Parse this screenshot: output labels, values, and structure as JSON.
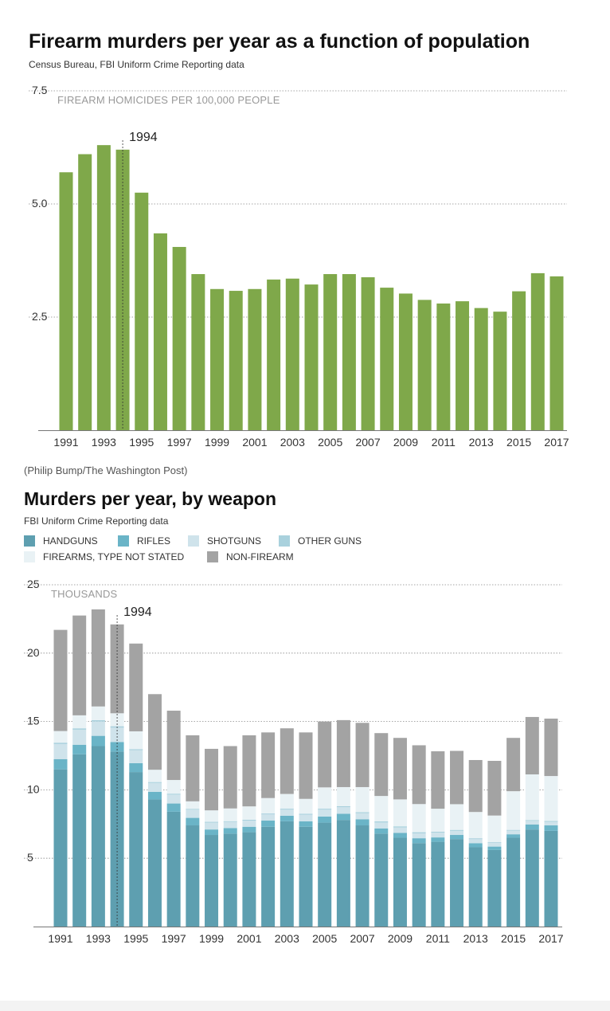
{
  "chart1": {
    "title": "Firearm murders per year as a function of population",
    "subtitle": "Census Bureau, FBI Uniform Crime Reporting data",
    "credit": "(Philip Bump/The Washington Post)"
  },
  "chart2": {
    "title": "Murders per year, by weapon",
    "subtitle": "FBI Uniform Crime Reporting data",
    "legend": [
      {
        "label": "HANDGUNS",
        "color": "#5e9fb0"
      },
      {
        "label": "RIFLES",
        "color": "#6ab4c7"
      },
      {
        "label": "SHOTGUNS",
        "color": "#cfe3eb"
      },
      {
        "label": "OTHER GUNS",
        "color": "#a9d1dd"
      },
      {
        "label": "FIREARMS, TYPE NOT STATED",
        "color": "#e9f2f5"
      },
      {
        "label": "NON-FIREARM",
        "color": "#a3a3a3"
      }
    ]
  },
  "chart_data": [
    {
      "type": "bar",
      "title": "Firearm murders per year as a function of population",
      "subtitle": "Census Bureau, FBI Uniform Crime Reporting data",
      "ylabel": "FIREARM HOMICIDES PER 100,000 PEOPLE",
      "ylim": [
        0,
        7.5
      ],
      "yticks": [
        "2.5",
        "5.0",
        "7.5"
      ],
      "ytick_values": [
        2.5,
        5.0,
        7.5
      ],
      "xtick_labels": [
        "1991",
        "1993",
        "1995",
        "1997",
        "1999",
        "2001",
        "2003",
        "2005",
        "2007",
        "2009",
        "2011",
        "2013",
        "2015",
        "2017"
      ],
      "annotation": {
        "label": "1994",
        "x": 1994
      },
      "bar_color": "#7fa84a",
      "grid": true,
      "categories": [
        1991,
        1992,
        1993,
        1994,
        1995,
        1996,
        1997,
        1998,
        1999,
        2000,
        2001,
        2002,
        2003,
        2004,
        2005,
        2006,
        2007,
        2008,
        2009,
        2010,
        2011,
        2012,
        2013,
        2014,
        2015,
        2016,
        2017
      ],
      "values": [
        5.7,
        6.1,
        6.3,
        6.2,
        5.25,
        4.35,
        4.05,
        3.45,
        3.12,
        3.08,
        3.12,
        3.33,
        3.35,
        3.22,
        3.45,
        3.45,
        3.38,
        3.15,
        3.02,
        2.88,
        2.8,
        2.85,
        2.7,
        2.62,
        3.07,
        3.47,
        3.4
      ]
    },
    {
      "type": "bar",
      "stacked": true,
      "title": "Murders per year, by weapon",
      "subtitle": "FBI Uniform Crime Reporting data",
      "ylabel": "THOUSANDS",
      "ylim": [
        0,
        25
      ],
      "yticks": [
        "5",
        "10",
        "15",
        "20",
        "25"
      ],
      "ytick_values": [
        5,
        10,
        15,
        20,
        25
      ],
      "xtick_labels": [
        "1991",
        "1993",
        "1995",
        "1997",
        "1999",
        "2001",
        "2003",
        "2005",
        "2007",
        "2009",
        "2011",
        "2013",
        "2015",
        "2017"
      ],
      "annotation": {
        "label": "1994",
        "x": 1994
      },
      "grid": true,
      "legend_position": "top-left",
      "categories": [
        1991,
        1992,
        1993,
        1994,
        1995,
        1996,
        1997,
        1998,
        1999,
        2000,
        2001,
        2002,
        2003,
        2004,
        2005,
        2006,
        2007,
        2008,
        2009,
        2010,
        2011,
        2012,
        2013,
        2014,
        2015,
        2016,
        2017
      ],
      "series": [
        {
          "name": "HANDGUNS",
          "color": "#5e9fb0",
          "values": [
            11.5,
            12.6,
            13.2,
            12.8,
            11.3,
            9.3,
            8.4,
            7.4,
            6.7,
            6.8,
            6.9,
            7.3,
            7.7,
            7.3,
            7.6,
            7.8,
            7.4,
            6.8,
            6.5,
            6.1,
            6.2,
            6.4,
            5.8,
            5.6,
            6.5,
            7.1,
            7.0
          ]
        },
        {
          "name": "RIFLES",
          "color": "#6ab4c7",
          "values": [
            0.75,
            0.7,
            0.75,
            0.7,
            0.65,
            0.55,
            0.6,
            0.55,
            0.4,
            0.4,
            0.4,
            0.45,
            0.4,
            0.4,
            0.45,
            0.45,
            0.45,
            0.38,
            0.35,
            0.36,
            0.32,
            0.3,
            0.29,
            0.25,
            0.25,
            0.37,
            0.4
          ]
        },
        {
          "name": "SHOTGUNS",
          "color": "#cfe3eb",
          "values": [
            1.1,
            1.1,
            1.05,
            1.05,
            0.95,
            0.65,
            0.65,
            0.6,
            0.5,
            0.45,
            0.45,
            0.45,
            0.45,
            0.48,
            0.5,
            0.48,
            0.44,
            0.43,
            0.4,
            0.36,
            0.35,
            0.3,
            0.3,
            0.26,
            0.26,
            0.26,
            0.26
          ]
        },
        {
          "name": "OTHER GUNS",
          "color": "#a9d1dd",
          "values": [
            0.1,
            0.1,
            0.1,
            0.1,
            0.08,
            0.07,
            0.07,
            0.06,
            0.06,
            0.06,
            0.06,
            0.07,
            0.07,
            0.07,
            0.07,
            0.08,
            0.08,
            0.08,
            0.08,
            0.08,
            0.07,
            0.07,
            0.07,
            0.06,
            0.06,
            0.06,
            0.06
          ]
        },
        {
          "name": "FIREARMS, TYPE NOT STATED",
          "color": "#e9f2f5",
          "values": [
            0.85,
            0.95,
            1.0,
            0.95,
            1.3,
            0.9,
            1.0,
            0.55,
            0.84,
            0.93,
            0.98,
            1.13,
            1.08,
            1.09,
            1.56,
            1.39,
            1.83,
            1.86,
            1.97,
            2.06,
            1.68,
            1.88,
            1.92,
            1.95,
            2.83,
            3.34,
            3.29
          ]
        },
        {
          "name": "NON-FIREARM",
          "color": "#a3a3a3",
          "values": [
            7.4,
            7.3,
            7.1,
            6.5,
            6.42,
            5.53,
            5.07,
            4.83,
            4.5,
            4.56,
            5.2,
            4.8,
            4.8,
            4.86,
            4.82,
            4.9,
            4.7,
            4.6,
            4.5,
            4.3,
            4.2,
            3.9,
            3.8,
            4.0,
            3.9,
            4.2,
            4.2
          ]
        }
      ]
    }
  ]
}
